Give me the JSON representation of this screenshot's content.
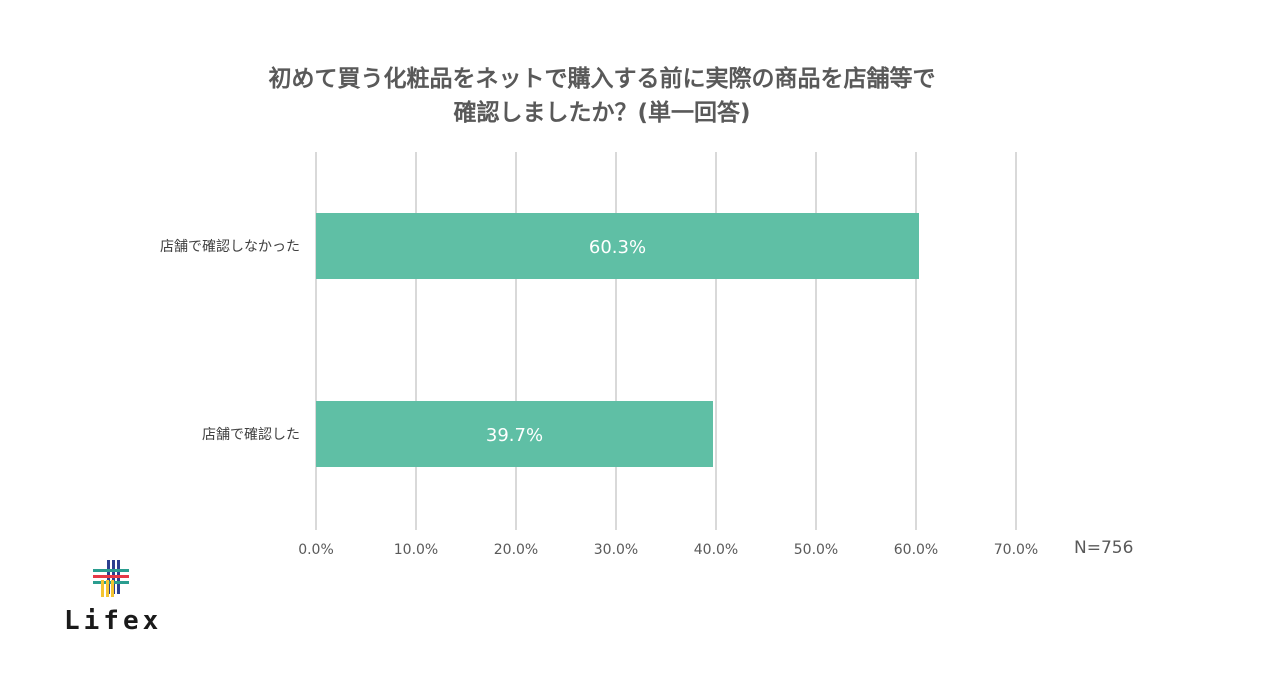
{
  "title_lines": [
    "初めて買う化粧品をネットで購入する前に実際の商品を店舗等で",
    "確認しましたか？(単一回答)"
  ],
  "sample_note": "N=756",
  "logo_text": "Lifex",
  "colors": {
    "bar": "#5fbfa5",
    "grid": "#d9d9d9",
    "text": "#595959"
  },
  "chart_data": {
    "type": "bar",
    "orientation": "horizontal",
    "title": "初めて買う化粧品をネットで購入する前に実際の商品を店舗等で確認しましたか？(単一回答)",
    "categories": [
      "店舗で確認しなかった",
      "店舗で確認した"
    ],
    "values": [
      60.3,
      39.7
    ],
    "value_labels": [
      "60.3%",
      "39.7%"
    ],
    "xlim": [
      0,
      70
    ],
    "xticks": [
      0,
      10,
      20,
      30,
      40,
      50,
      60,
      70
    ],
    "xtick_labels": [
      "0.0%",
      "10.0%",
      "20.0%",
      "30.0%",
      "40.0%",
      "50.0%",
      "60.0%",
      "70.0%"
    ],
    "grid": "vertical",
    "legend": "none"
  }
}
